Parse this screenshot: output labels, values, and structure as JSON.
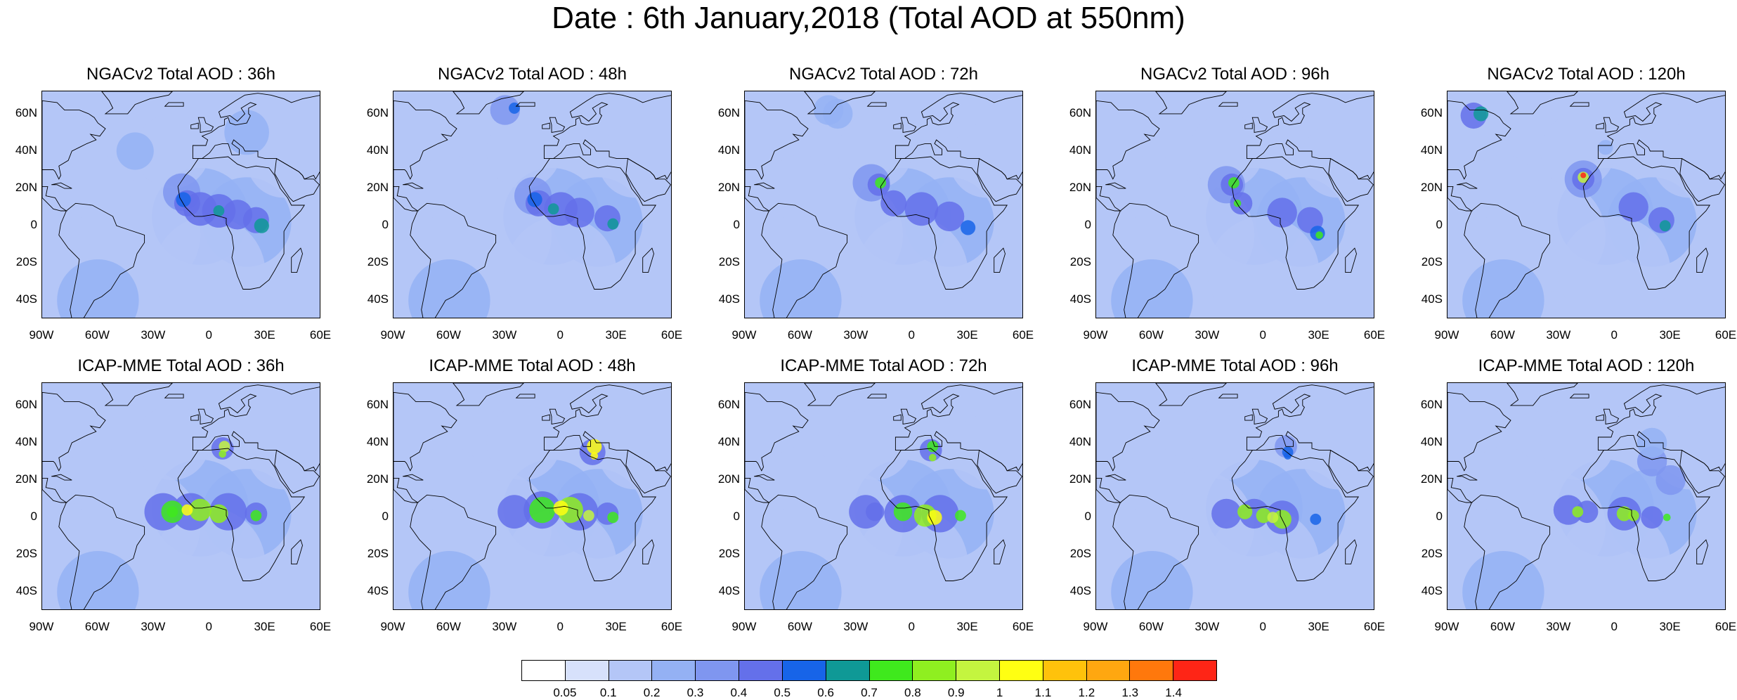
{
  "main_title": "Date : 6th January,2018 (Total AOD at 550nm)",
  "lat_ticks": [
    "60N",
    "40N",
    "20N",
    "0",
    "20S",
    "40S"
  ],
  "lon_ticks": [
    "90W",
    "60W",
    "30W",
    "0",
    "30E",
    "60E"
  ],
  "panels": [
    {
      "title": "NGACv2 Total AOD : 36h",
      "model": "NGACv2",
      "lead": "36h"
    },
    {
      "title": "NGACv2 Total AOD : 48h",
      "model": "NGACv2",
      "lead": "48h"
    },
    {
      "title": "NGACv2 Total AOD : 72h",
      "model": "NGACv2",
      "lead": "72h"
    },
    {
      "title": "NGACv2 Total AOD : 96h",
      "model": "NGACv2",
      "lead": "96h"
    },
    {
      "title": "NGACv2 Total AOD : 120h",
      "model": "NGACv2",
      "lead": "120h"
    },
    {
      "title": "ICAP-MME Total AOD : 36h",
      "model": "ICAP-MME",
      "lead": "36h"
    },
    {
      "title": "ICAP-MME Total AOD : 48h",
      "model": "ICAP-MME",
      "lead": "48h"
    },
    {
      "title": "ICAP-MME Total AOD : 72h",
      "model": "ICAP-MME",
      "lead": "72h"
    },
    {
      "title": "ICAP-MME Total AOD : 96h",
      "model": "ICAP-MME",
      "lead": "96h"
    },
    {
      "title": "ICAP-MME Total AOD : 120h",
      "model": "ICAP-MME",
      "lead": "120h"
    }
  ],
  "colorbar": {
    "labels": [
      "0.05",
      "0.1",
      "0.2",
      "0.3",
      "0.4",
      "0.5",
      "0.6",
      "0.7",
      "0.8",
      "0.9",
      "1",
      "1.1",
      "1.2",
      "1.3",
      "1.4"
    ],
    "colors": [
      "#ffffff",
      "#d7e1fb",
      "#b4c6f7",
      "#94b1f4",
      "#7f96f0",
      "#6470ea",
      "#1764e8",
      "#0f9996",
      "#3fe91d",
      "#8fef20",
      "#c4f53f",
      "#ffff12",
      "#ffc20b",
      "#ffa710",
      "#ff780c",
      "#fe2516"
    ]
  }
}
